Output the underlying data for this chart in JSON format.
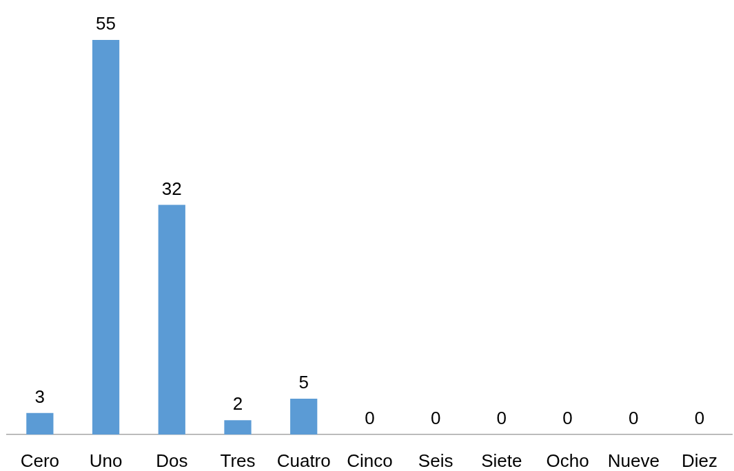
{
  "chart_data": {
    "type": "bar",
    "categories": [
      "Cero",
      "Uno",
      "Dos",
      "Tres",
      "Cuatro",
      "Cinco",
      "Seis",
      "Siete",
      "Ocho",
      "Nueve",
      "Diez"
    ],
    "values": [
      3,
      55,
      32,
      2,
      5,
      0,
      0,
      0,
      0,
      0,
      0
    ],
    "color": "#5b9bd5",
    "data_labels": true
  }
}
